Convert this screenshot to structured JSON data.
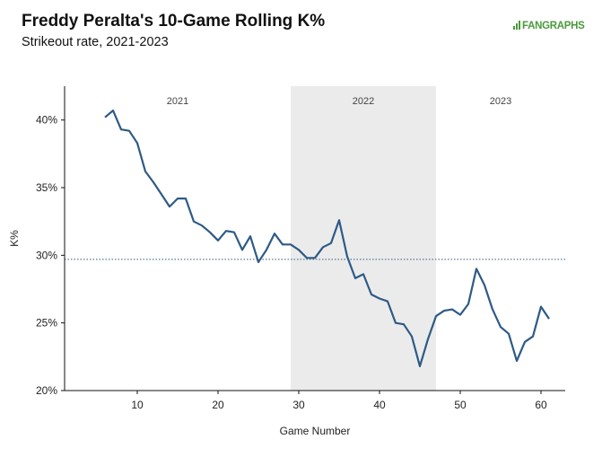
{
  "title": "Freddy Peralta's 10-Game Rolling K%",
  "subtitle": "Strikeout rate, 2021-2023",
  "logo_text": "FANGRAPHS",
  "colors": {
    "line": "#2e5a86",
    "reference": "#2e5a86",
    "shade": "#ebebeb",
    "logo": "#4a9a3b"
  },
  "chart_data": {
    "type": "line",
    "title": "Freddy Peralta's 10-Game Rolling K%",
    "subtitle": "Strikeout rate, 2021-2023",
    "xlabel": "Game Number",
    "ylabel": "K%",
    "xlim": [
      1,
      63
    ],
    "ylim": [
      20,
      42.5
    ],
    "xticks": [
      10,
      20,
      30,
      40,
      50,
      60
    ],
    "yticks": [
      20,
      25,
      30,
      35,
      40
    ],
    "ytick_labels": [
      "20%",
      "25%",
      "30%",
      "35%",
      "40%"
    ],
    "reference_line": {
      "y": 29.7,
      "style": "dotted"
    },
    "eras": [
      {
        "label": "2021",
        "x_start": 1,
        "x_end": 29,
        "shaded": false
      },
      {
        "label": "2022",
        "x_start": 29,
        "x_end": 47,
        "shaded": true
      },
      {
        "label": "2023",
        "x_start": 47,
        "x_end": 63,
        "shaded": false
      }
    ],
    "series": [
      {
        "x": [
          6,
          7,
          8,
          9,
          10,
          11,
          12,
          13,
          14,
          15,
          16,
          17,
          18,
          19,
          20,
          21,
          22,
          23,
          24,
          25,
          26,
          27,
          28,
          29,
          30,
          31,
          32,
          33,
          34,
          35,
          36,
          37,
          38,
          39,
          40,
          41,
          42,
          43,
          44,
          45,
          46,
          47,
          48,
          49,
          50,
          51,
          52,
          53,
          54,
          55,
          56,
          57,
          58,
          59,
          60,
          61
        ],
        "values": [
          40.2,
          40.7,
          39.3,
          39.2,
          38.3,
          36.2,
          35.4,
          34.5,
          33.6,
          34.2,
          34.2,
          32.5,
          32.2,
          31.7,
          31.1,
          31.8,
          31.7,
          30.4,
          31.4,
          29.5,
          30.4,
          31.6,
          30.8,
          30.8,
          30.4,
          29.8,
          29.8,
          30.6,
          30.9,
          32.6,
          29.9,
          28.3,
          28.6,
          27.1,
          26.8,
          26.6,
          25.0,
          24.9,
          24.0,
          21.8,
          23.8,
          25.5,
          25.9,
          26.0,
          25.6,
          26.4,
          29.0,
          27.8,
          26.0,
          24.7,
          24.2,
          22.2,
          23.6,
          24.0,
          26.2,
          25.3
        ]
      }
    ]
  }
}
